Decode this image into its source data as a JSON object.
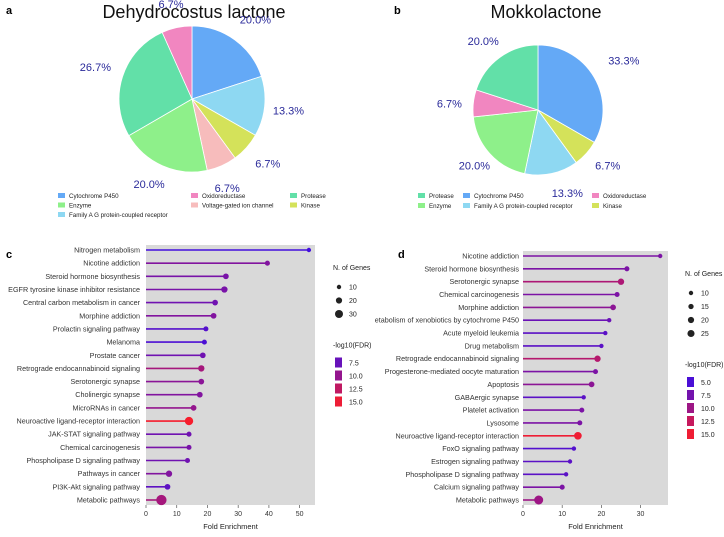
{
  "panels": {
    "a": "a",
    "b": "b",
    "c": "c",
    "d": "d"
  },
  "colors": {
    "Cytochrome P450": "#64a9f6",
    "Oxidoreductase": "#f186c0",
    "Protease": "#62e0a8",
    "Enzyme": "#8ef08a",
    "Voltage-gated ion channel": "#f7bcbc",
    "Kinase": "#d4e25a",
    "Family A G protein-coupled receptor": "#8ed8f2",
    "lollipop_bg": "#d9d9d9",
    "fdr_low": "#3a0ee6",
    "fdr_high": "#ff1e24"
  },
  "chart_data": [
    {
      "id": "a",
      "type": "pie",
      "title": "Dehydrocostus  lactone",
      "slices": [
        {
          "label": "Cytochrome P450",
          "value": 20.0,
          "text": "20.0%"
        },
        {
          "label": "Family A G protein-coupled receptor",
          "value": 13.3,
          "text": "13.3%"
        },
        {
          "label": "Kinase",
          "value": 6.7,
          "text": "6.7%"
        },
        {
          "label": "Voltage-gated ion channel",
          "value": 6.7,
          "text": "6.7%"
        },
        {
          "label": "Enzyme",
          "value": 20.0,
          "text": "20.0%"
        },
        {
          "label": "Protease",
          "value": 26.7,
          "text": "26.7%"
        },
        {
          "label": "Oxidoreductase",
          "value": 6.7,
          "text": "6.7%"
        }
      ],
      "legend": [
        "Cytochrome P450",
        "Oxidoreductase",
        "Protease",
        "Enzyme",
        "Voltage-gated ion channel",
        "Kinase",
        "Family A G protein-coupled receptor"
      ]
    },
    {
      "id": "b",
      "type": "pie",
      "title": "Mokkolactone",
      "slices": [
        {
          "label": "Cytochrome P450",
          "value": 33.3,
          "text": "33.3%"
        },
        {
          "label": "Kinase",
          "value": 6.7,
          "text": "6.7%"
        },
        {
          "label": "Family A G protein-coupled receptor",
          "value": 13.3,
          "text": "13.3%"
        },
        {
          "label": "Enzyme",
          "value": 20.0,
          "text": "20.0%"
        },
        {
          "label": "Oxidoreductase",
          "value": 6.7,
          "text": "6.7%"
        },
        {
          "label": "Protease",
          "value": 20.0,
          "text": "20.0%"
        }
      ],
      "legend": [
        "Protease",
        "Cytochrome P450",
        "Oxidoreductase",
        "Enzyme",
        "Family A G protein-coupled receptor",
        "Kinase"
      ]
    },
    {
      "id": "c",
      "type": "lollipop",
      "xlabel": "Fold Enrichment",
      "xlim": [
        0,
        55
      ],
      "xticks": [
        0,
        10,
        20,
        30,
        40,
        50
      ],
      "size_legend": {
        "title": "N. of Genes",
        "values": [
          10,
          20,
          30
        ]
      },
      "color_legend": {
        "title": "-log10(FDR)",
        "values": [
          7.5,
          10.0,
          12.5,
          15.0
        ],
        "labels": [
          "7.5",
          "10.0",
          "12.5",
          "15.0"
        ],
        "range": [
          5,
          16
        ]
      },
      "categories": [
        {
          "name": "Nitrogen metabolism",
          "fold": 53,
          "fdr": 5.5,
          "genes": 3
        },
        {
          "name": "Nicotine addiction",
          "fold": 39.5,
          "fdr": 9,
          "genes": 4
        },
        {
          "name": "Steroid hormone biosynthesis",
          "fold": 26,
          "fdr": 8.5,
          "genes": 5
        },
        {
          "name": "EGFR tyrosine kinase inhibitor resistance",
          "fold": 25.5,
          "fdr": 8.5,
          "genes": 6
        },
        {
          "name": "Central carbon metabolism in cancer",
          "fold": 22.5,
          "fdr": 8,
          "genes": 5
        },
        {
          "name": "Morphine addiction",
          "fold": 22,
          "fdr": 9,
          "genes": 5
        },
        {
          "name": "Prolactin signaling pathway",
          "fold": 19.5,
          "fdr": 6.5,
          "genes": 4
        },
        {
          "name": "Melanoma",
          "fold": 19,
          "fdr": 6,
          "genes": 4
        },
        {
          "name": "Prostate cancer",
          "fold": 18.5,
          "fdr": 8,
          "genes": 5
        },
        {
          "name": "Retrograde endocannabinoid signaling",
          "fold": 18,
          "fdr": 11,
          "genes": 6
        },
        {
          "name": "Serotonergic synapse",
          "fold": 18,
          "fdr": 9.5,
          "genes": 5
        },
        {
          "name": "Cholinergic synapse",
          "fold": 17.5,
          "fdr": 9,
          "genes": 5
        },
        {
          "name": "MicroRNAs in cancer",
          "fold": 15.5,
          "fdr": 10,
          "genes": 5
        },
        {
          "name": "Neuroactive ligand-receptor interaction",
          "fold": 14,
          "fdr": 15.5,
          "genes": 9
        },
        {
          "name": "JAK-STAT signaling pathway",
          "fold": 14,
          "fdr": 8,
          "genes": 4
        },
        {
          "name": "Chemical carcinogenesis",
          "fold": 14,
          "fdr": 8.5,
          "genes": 4
        },
        {
          "name": "Phospholipase D signaling pathway",
          "fold": 13.5,
          "fdr": 8,
          "genes": 4
        },
        {
          "name": "Pathways in cancer",
          "fold": 7.5,
          "fdr": 9,
          "genes": 6
        },
        {
          "name": "PI3K-Akt signaling pathway",
          "fold": 7,
          "fdr": 7,
          "genes": 5
        },
        {
          "name": "Metabolic pathways",
          "fold": 5,
          "fdr": 11,
          "genes": 12
        }
      ]
    },
    {
      "id": "d",
      "type": "lollipop",
      "xlabel": "Fold Enrichment",
      "xlim": [
        0,
        37
      ],
      "xticks": [
        0,
        10,
        20,
        30
      ],
      "size_legend": {
        "title": "N. of Genes",
        "values": [
          10,
          15,
          20,
          25
        ]
      },
      "color_legend": {
        "title": "-log10(FDR)",
        "values": [
          5.0,
          7.5,
          10.0,
          12.5,
          15.0
        ],
        "labels": [
          "5.0",
          "7.5",
          "10.0",
          "12.5",
          "15.0"
        ],
        "range": [
          4,
          16
        ]
      },
      "categories": [
        {
          "name": "Nicotine addiction",
          "fold": 35,
          "fdr": 8,
          "genes": 3
        },
        {
          "name": "Steroid hormone biosynthesis",
          "fold": 26.5,
          "fdr": 8,
          "genes": 4
        },
        {
          "name": "Serotonergic synapse",
          "fold": 25,
          "fdr": 11,
          "genes": 6
        },
        {
          "name": "Chemical carcinogenesis",
          "fold": 24,
          "fdr": 8,
          "genes": 4
        },
        {
          "name": "Morphine addiction",
          "fold": 23,
          "fdr": 9,
          "genes": 5
        },
        {
          "name": "etabolism of xenobiotics by cytochrome P450",
          "fold": 22,
          "fdr": 7,
          "genes": 3
        },
        {
          "name": "Acute myeloid leukemia",
          "fold": 21,
          "fdr": 6,
          "genes": 3
        },
        {
          "name": "Drug metabolism",
          "fold": 20,
          "fdr": 6,
          "genes": 3
        },
        {
          "name": "Retrograde endocannabinoid signaling",
          "fold": 19,
          "fdr": 11.5,
          "genes": 6
        },
        {
          "name": "Progesterone-mediated oocyte maturation",
          "fold": 18.5,
          "fdr": 8,
          "genes": 4
        },
        {
          "name": "Apoptosis",
          "fold": 17.5,
          "fdr": 9,
          "genes": 5
        },
        {
          "name": "GABAergic synapse",
          "fold": 15.5,
          "fdr": 6,
          "genes": 3
        },
        {
          "name": "Platelet activation",
          "fold": 15,
          "fdr": 8,
          "genes": 4
        },
        {
          "name": "Lysosome",
          "fold": 14.5,
          "fdr": 8,
          "genes": 4
        },
        {
          "name": "Neuroactive ligand-receptor interaction",
          "fold": 14,
          "fdr": 15,
          "genes": 8
        },
        {
          "name": "FoxO signaling pathway",
          "fold": 13,
          "fdr": 5.5,
          "genes": 3
        },
        {
          "name": "Estrogen signaling pathway",
          "fold": 12,
          "fdr": 6,
          "genes": 3
        },
        {
          "name": "Phospholipase D signaling pathway",
          "fold": 11,
          "fdr": 6,
          "genes": 3
        },
        {
          "name": "Calcium signaling pathway",
          "fold": 10,
          "fdr": 8,
          "genes": 4
        },
        {
          "name": "Metabolic pathways",
          "fold": 4,
          "fdr": 10,
          "genes": 10
        }
      ]
    }
  ]
}
